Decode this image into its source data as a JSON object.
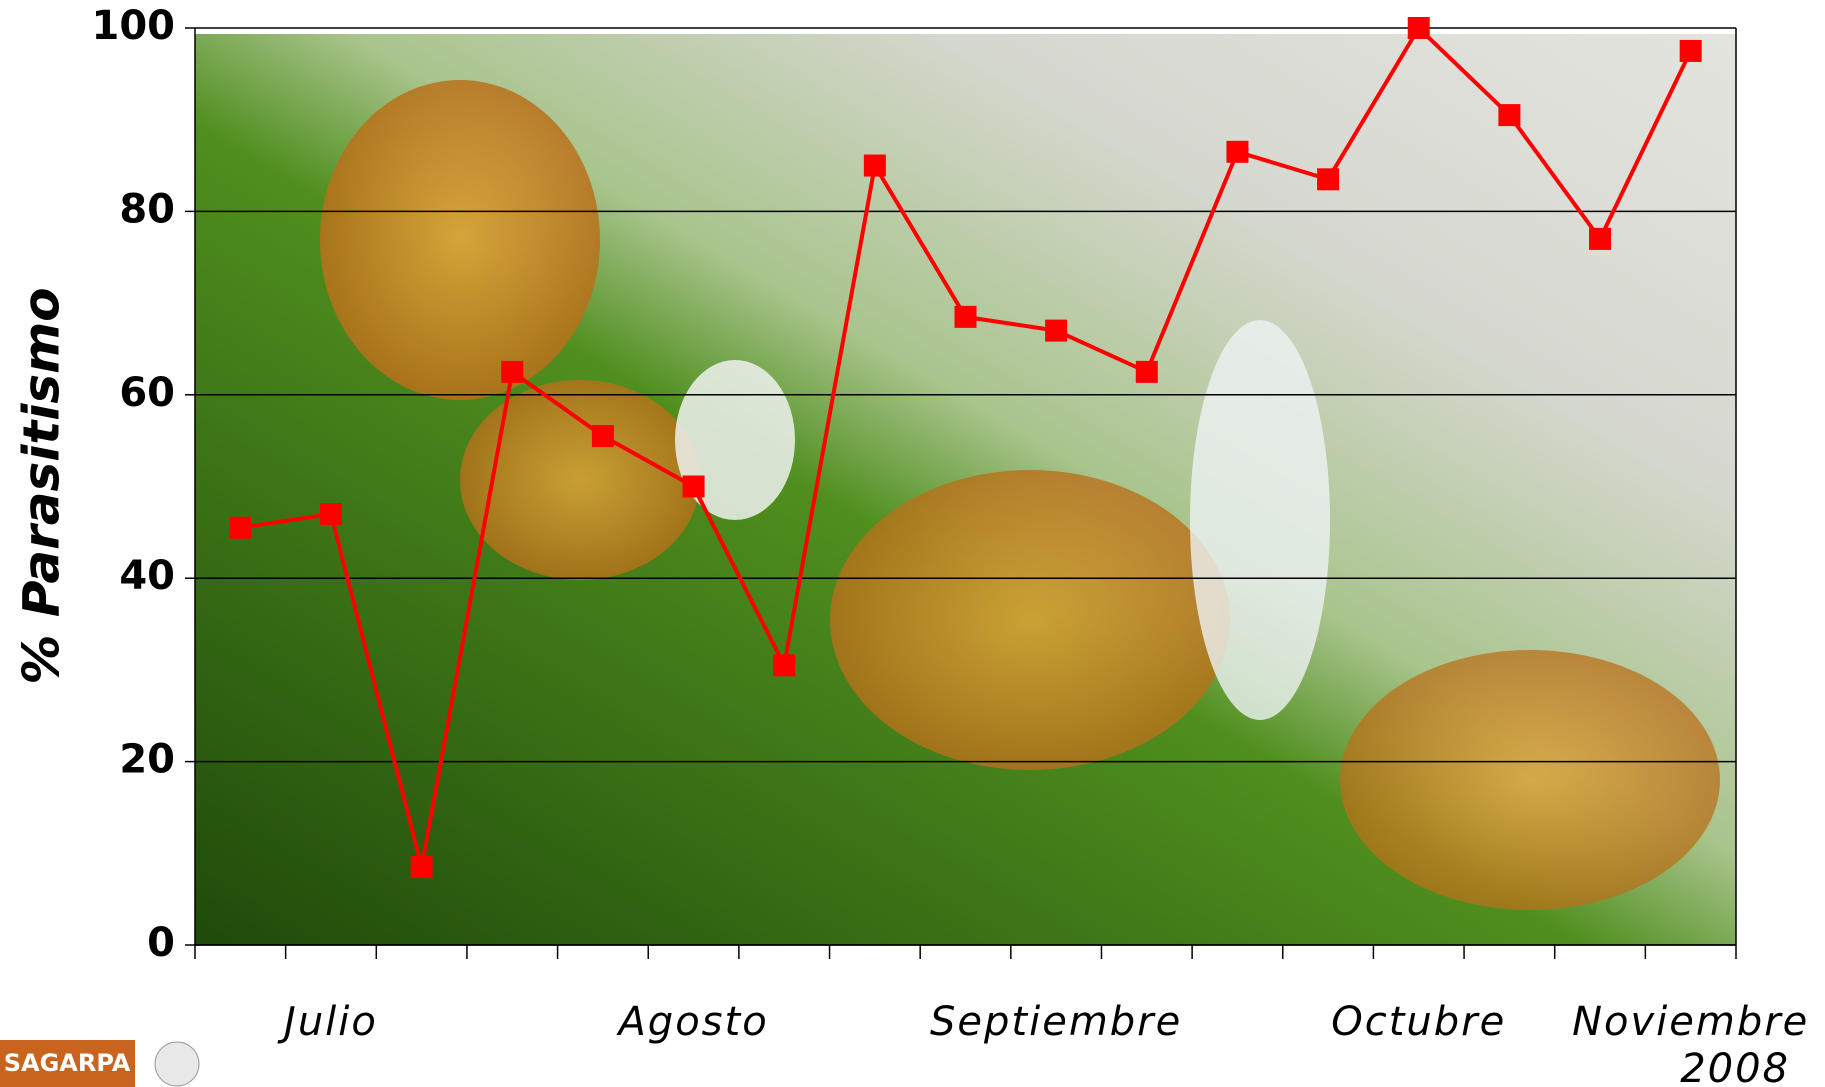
{
  "chart_data": {
    "type": "line",
    "ylabel": "% Parasitismo",
    "categories": [
      null,
      "Julio",
      null,
      null,
      null,
      "Agosto",
      null,
      null,
      null,
      "Septiembre",
      null,
      null,
      null,
      "Octubre",
      null,
      null,
      "Noviembre"
    ],
    "year_label": "2008",
    "series": [
      {
        "name": "Parasitismo",
        "color": "#ff0000",
        "values": [
          45.5,
          47,
          8.5,
          62.5,
          55.5,
          50,
          30.5,
          85,
          68.5,
          67,
          62.5,
          86.5,
          83.5,
          100,
          90.5,
          77,
          97.5
        ]
      }
    ],
    "ylim": [
      0,
      100
    ],
    "yticks": [
      0,
      20,
      40,
      60,
      80,
      100
    ],
    "grid": true
  },
  "footer": {
    "logo": "SAGARPA"
  }
}
